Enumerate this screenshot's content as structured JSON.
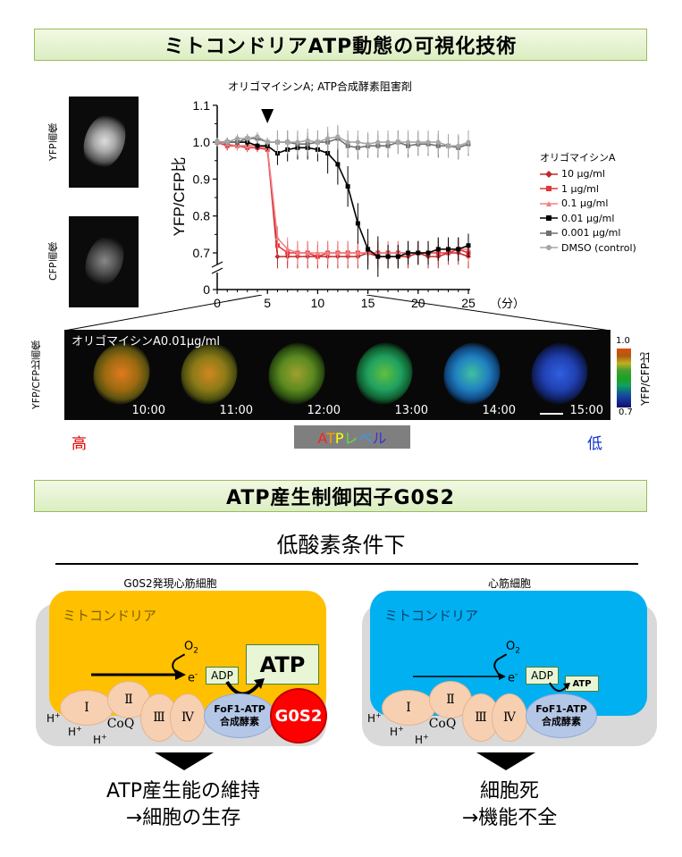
{
  "section1_title": "ミトコンドリアATP動態の可視化技術",
  "yfp_image_label": "YFP画像",
  "cfp_image_label": "CFP画像",
  "chart_subtitle": "オリゴマイシンA;  ATP合成酵素阻害剤",
  "legend_title": "オリゴマイシンA",
  "minutes_label": "（分）",
  "colors": {
    "dark_red": "#c0282d",
    "red": "#e8333a",
    "pink": "#f08080",
    "black": "#000000",
    "dark_gray": "#707070",
    "light_gray": "#a6a6a6",
    "green_border": "#9bbb59",
    "gold": "#ffc000",
    "sky": "#00b0f0",
    "g0s2_red": "#ff0000"
  },
  "chart_data": {
    "type": "line",
    "title": "",
    "xlabel": "",
    "ylabel": "YFP/CFP比",
    "xlim": [
      0,
      25
    ],
    "ylim": [
      0.65,
      1.1
    ],
    "y_axis_break": true,
    "yticks": [
      "0",
      "0.7",
      "0.8",
      "0.9",
      "1.0",
      "1.1"
    ],
    "xticks": [
      "0",
      "5",
      "10",
      "15",
      "20",
      "25"
    ],
    "annotation": "arrowhead at 5 min (drug addition)",
    "x": [
      0,
      1,
      2,
      3,
      4,
      5,
      6,
      7,
      8,
      9,
      10,
      11,
      12,
      13,
      14,
      15,
      16,
      17,
      18,
      19,
      20,
      21,
      22,
      23,
      24,
      25
    ],
    "series": [
      {
        "name": "10 μg/ml",
        "color": "#c0282d",
        "marker": "diamond",
        "values": [
          1.0,
          0.99,
          0.99,
          0.99,
          0.99,
          0.985,
          0.69,
          0.69,
          0.69,
          0.69,
          0.69,
          0.69,
          0.69,
          0.69,
          0.69,
          0.7,
          0.69,
          0.69,
          0.69,
          0.69,
          0.7,
          0.69,
          0.69,
          0.7,
          0.7,
          0.69
        ]
      },
      {
        "name": "1 μg/ml",
        "color": "#e8333a",
        "marker": "square",
        "values": [
          1.0,
          0.99,
          0.99,
          0.985,
          0.985,
          0.98,
          0.72,
          0.7,
          0.7,
          0.7,
          0.69,
          0.7,
          0.7,
          0.7,
          0.7,
          0.7,
          0.7,
          0.7,
          0.7,
          0.7,
          0.7,
          0.7,
          0.7,
          0.7,
          0.71,
          0.7
        ]
      },
      {
        "name": "0.1 μg/ml",
        "color": "#f08080",
        "marker": "triangle",
        "values": [
          1.0,
          0.995,
          0.99,
          0.99,
          0.99,
          0.985,
          0.74,
          0.71,
          0.7,
          0.7,
          0.7,
          0.7,
          0.7,
          0.7,
          0.7,
          0.7,
          0.7,
          0.7,
          0.7,
          0.7,
          0.7,
          0.7,
          0.71,
          0.71,
          0.71,
          0.71
        ]
      },
      {
        "name": "0.01 μg/ml",
        "color": "#000000",
        "marker": "square",
        "values": [
          1.0,
          1.0,
          1.0,
          1.0,
          0.99,
          0.99,
          0.97,
          0.98,
          0.985,
          0.985,
          0.98,
          0.97,
          0.94,
          0.88,
          0.78,
          0.71,
          0.69,
          0.69,
          0.69,
          0.7,
          0.7,
          0.7,
          0.71,
          0.71,
          0.71,
          0.72
        ]
      },
      {
        "name": "0.001 μg/ml",
        "color": "#707070",
        "marker": "square",
        "values": [
          1.0,
          1.0,
          1.0,
          1.01,
          1.01,
          1.0,
          1.0,
          1.0,
          0.995,
          0.995,
          1.0,
          1.0,
          1.01,
          0.99,
          0.985,
          0.99,
          0.99,
          0.99,
          1.0,
          0.99,
          0.995,
          0.995,
          0.99,
          0.99,
          0.985,
          0.995
        ]
      },
      {
        "name": "DMSO (control)",
        "color": "#a6a6a6",
        "marker": "circle",
        "values": [
          1.0,
          1.0,
          1.01,
          1.01,
          1.015,
          1.0,
          1.0,
          1.0,
          1.0,
          1.005,
          1.0,
          1.01,
          1.015,
          1.0,
          1.0,
          0.995,
          1.0,
          1.0,
          1.0,
          1.0,
          1.0,
          1.0,
          1.0,
          0.99,
          0.99,
          1.0
        ]
      }
    ]
  },
  "timelapse_title": "オリゴマイシンA0.01μg/ml",
  "timelapse_side_label": "YFP/CFP比画像",
  "timelapse_times": [
    "10:00",
    "11:00",
    "12:00",
    "13:00",
    "14:00",
    "15:00"
  ],
  "colorbar_top": "1.0",
  "colorbar_bottom": "0.7",
  "colorbar_label": "YFP/CFP比",
  "level_high": "高",
  "level_low": "低",
  "atp_level_chars": [
    "A",
    "T",
    "P",
    "レ",
    "ベ",
    "ル"
  ],
  "atp_level_colors": [
    "#ff2020",
    "#ff9900",
    "#ffff00",
    "#66dd44",
    "#3399ff",
    "#3333dd"
  ],
  "section2_title": "ATP産生制御因子G0S2",
  "condition_title": "低酸素条件下",
  "left_panel": {
    "caption": "G0S2発現心筋細胞",
    "mito_label": "ミトコンドリア",
    "o2": "O",
    "o2_sub": "2",
    "e_label": "e",
    "e_sup": "-",
    "adp": "ADP",
    "atp": "ATP",
    "complex_I": "I",
    "complex_II": "Ⅱ",
    "complex_III": "Ⅲ",
    "complex_IV": "Ⅳ",
    "coq": "CoQ",
    "enzyme_line1": "FoF1-ATP",
    "enzyme_line2": "合成酵素",
    "g0s2": "G0S2",
    "h": "H",
    "h_sup": "+",
    "result_line1": "ATP産生能の維持",
    "result_line2": "→細胞の生存"
  },
  "right_panel": {
    "caption": "心筋細胞",
    "mito_label": "ミトコンドリア",
    "o2": "O",
    "o2_sub": "2",
    "e_label": "e",
    "e_sup": "-",
    "adp": "ADP",
    "atp": "ATP",
    "complex_I": "I",
    "complex_II": "Ⅱ",
    "complex_III": "Ⅲ",
    "complex_IV": "Ⅳ",
    "coq": "CoQ",
    "enzyme_line1": "FoF1-ATP",
    "enzyme_line2": "合成酵素",
    "h": "H",
    "h_sup": "+",
    "result_line1": "細胞死",
    "result_line2": "→機能不全"
  }
}
